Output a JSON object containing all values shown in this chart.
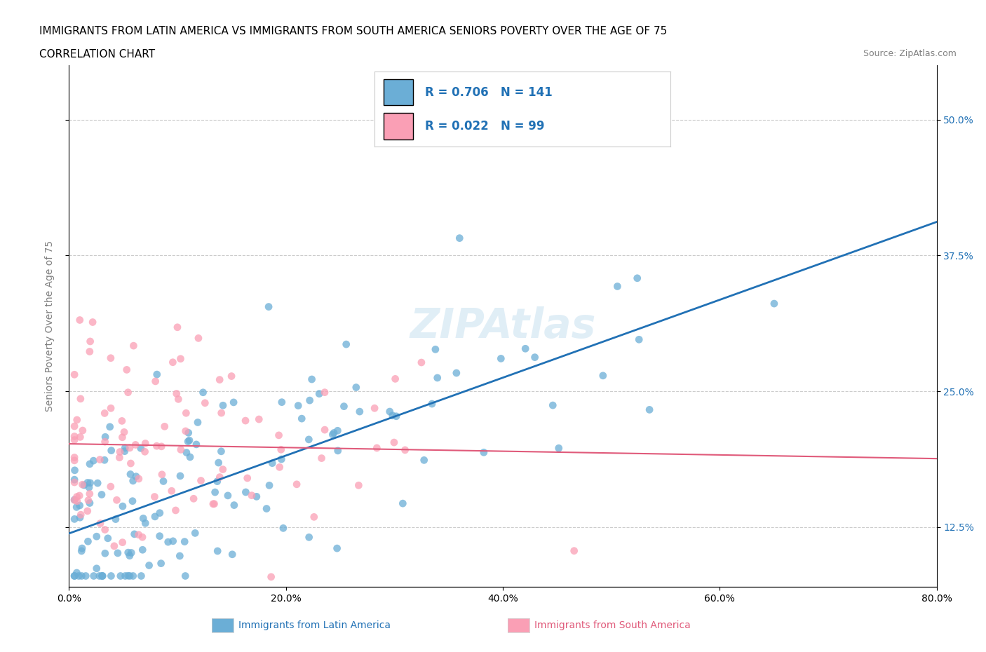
{
  "title_line1": "IMMIGRANTS FROM LATIN AMERICA VS IMMIGRANTS FROM SOUTH AMERICA SENIORS POVERTY OVER THE AGE OF 75",
  "title_line2": "CORRELATION CHART",
  "source": "Source: ZipAtlas.com",
  "ylabel": "Seniors Poverty Over the Age of 75",
  "xlim": [
    0,
    0.8
  ],
  "ylim": [
    0.07,
    0.55
  ],
  "xticks": [
    0.0,
    0.2,
    0.4,
    0.6,
    0.8
  ],
  "xticklabels": [
    "0.0%",
    "20.0%",
    "40.0%",
    "60.0%",
    "80.0%"
  ],
  "yticks": [
    0.125,
    0.25,
    0.375,
    0.5
  ],
  "yticklabels": [
    "12.5%",
    "25.0%",
    "37.5%",
    "50.0%"
  ],
  "blue_color": "#6baed6",
  "pink_color": "#fa9fb5",
  "blue_line_color": "#2171b5",
  "pink_line_color": "#e05a7a",
  "R_blue": 0.706,
  "N_blue": 141,
  "R_pink": 0.022,
  "N_pink": 99,
  "legend_label_blue": "Immigrants from Latin America",
  "legend_label_pink": "Immigrants from South America",
  "watermark": "ZIPAtlas"
}
